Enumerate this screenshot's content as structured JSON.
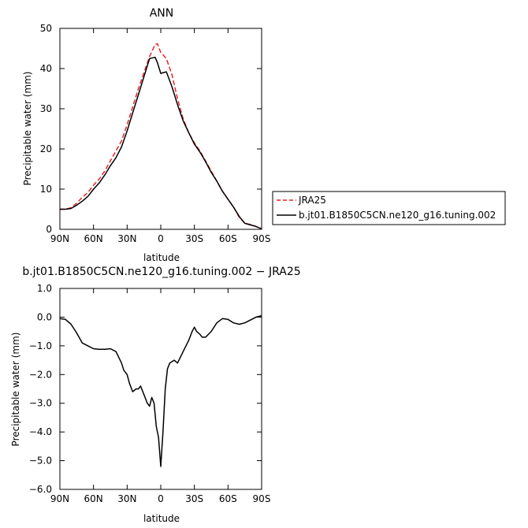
{
  "chart_data": [
    {
      "type": "line",
      "title": "ANN",
      "xlabel": "latitude",
      "ylabel": "Precipitable water (mm)",
      "xlim": [
        90,
        -90
      ],
      "ylim": [
        0,
        50
      ],
      "xticks": [
        90,
        60,
        30,
        0,
        -30,
        -60,
        -90
      ],
      "xtick_labels": [
        "90N",
        "60N",
        "30N",
        "0",
        "30S",
        "60S",
        "90S"
      ],
      "yticks": [
        0,
        10,
        20,
        30,
        40,
        50
      ],
      "ytick_labels": [
        "0",
        "10",
        "20",
        "30",
        "40",
        "50"
      ],
      "legend_position": "right",
      "series": [
        {
          "name": "JRA25",
          "color": "#e8242a",
          "dash": "dashed",
          "x": [
            90,
            85,
            80,
            75,
            70,
            65,
            60,
            55,
            50,
            45,
            40,
            35,
            30,
            25,
            20,
            15,
            10,
            5,
            3,
            0,
            -5,
            -10,
            -15,
            -20,
            -25,
            -30,
            -35,
            -40,
            -45,
            -50,
            -55,
            -60,
            -65,
            -70,
            -75,
            -80,
            -85,
            -90
          ],
          "y": [
            5,
            5,
            5.4,
            6.5,
            8,
            9.2,
            11,
            12.5,
            14.5,
            17,
            19.5,
            22,
            26,
            30.5,
            35,
            39,
            43,
            46,
            46.2,
            44,
            42.5,
            38.5,
            32.5,
            27.5,
            24,
            21.5,
            19.5,
            17,
            14.5,
            12,
            9.5,
            7.5,
            5.5,
            3,
            1.5,
            1.2,
            0.7,
            0.2
          ]
        },
        {
          "name": "b.jt01.B1850C5CN.ne120_g16.tuning.002",
          "color": "#000000",
          "dash": "solid",
          "x": [
            90,
            85,
            80,
            75,
            70,
            65,
            60,
            55,
            50,
            45,
            40,
            35,
            30,
            25,
            20,
            15,
            10,
            5,
            3,
            0,
            -5,
            -10,
            -15,
            -20,
            -25,
            -30,
            -35,
            -40,
            -45,
            -50,
            -55,
            -60,
            -65,
            -70,
            -75,
            -80,
            -85,
            -90
          ],
          "y": [
            5,
            5,
            5.2,
            6,
            7,
            8.2,
            10,
            11.5,
            13.5,
            15.8,
            17.8,
            20.5,
            24.5,
            29,
            33.5,
            38,
            42.5,
            42.8,
            41.5,
            38.8,
            39.2,
            35.5,
            31,
            27,
            24,
            21.2,
            19.2,
            16.8,
            14.2,
            12,
            9.5,
            7.5,
            5.5,
            3.2,
            1.5,
            1.1,
            0.7,
            0.1
          ]
        }
      ]
    },
    {
      "type": "line",
      "title": "b.jt01.B1850C5CN.ne120_g16.tuning.002 − JRA25",
      "xlabel": "latitude",
      "ylabel": "Precipitable water (mm)",
      "xlim": [
        90,
        -90
      ],
      "ylim": [
        -6,
        1
      ],
      "xticks": [
        90,
        60,
        30,
        0,
        -30,
        -60,
        -90
      ],
      "xtick_labels": [
        "90N",
        "60N",
        "30N",
        "0",
        "30S",
        "60S",
        "90S"
      ],
      "yticks": [
        1,
        0,
        -1,
        -2,
        -3,
        -4,
        -5,
        -6
      ],
      "ytick_labels": [
        "1.0",
        "0.0",
        "−1.0",
        "−2.0",
        "−3.0",
        "−4.0",
        "−5.0",
        "−6.0"
      ],
      "series": [
        {
          "name": "",
          "color": "#000000",
          "dash": "solid",
          "x": [
            90,
            85,
            80,
            75,
            70,
            65,
            60,
            55,
            50,
            45,
            40,
            35,
            33,
            30,
            28,
            25,
            22,
            20,
            18,
            15,
            14,
            12,
            10,
            8,
            6,
            4,
            2,
            0,
            -2,
            -4,
            -6,
            -8,
            -10,
            -12,
            -15,
            -20,
            -25,
            -28,
            -30,
            -32,
            -35,
            -37,
            -40,
            -45,
            -50,
            -55,
            -60,
            -65,
            -70,
            -75,
            -80,
            -85,
            -90
          ],
          "y": [
            -0.05,
            -0.08,
            -0.25,
            -0.55,
            -0.9,
            -1.0,
            -1.1,
            -1.12,
            -1.12,
            -1.1,
            -1.2,
            -1.6,
            -1.85,
            -2.0,
            -2.3,
            -2.6,
            -2.5,
            -2.5,
            -2.4,
            -2.7,
            -2.8,
            -3.0,
            -3.1,
            -2.8,
            -3.0,
            -3.8,
            -4.2,
            -5.2,
            -4.0,
            -2.5,
            -1.8,
            -1.6,
            -1.55,
            -1.5,
            -1.6,
            -1.2,
            -0.8,
            -0.5,
            -0.35,
            -0.5,
            -0.6,
            -0.7,
            -0.7,
            -0.5,
            -0.2,
            -0.05,
            -0.08,
            -0.2,
            -0.25,
            -0.2,
            -0.1,
            0.0,
            0.05
          ]
        }
      ]
    }
  ]
}
